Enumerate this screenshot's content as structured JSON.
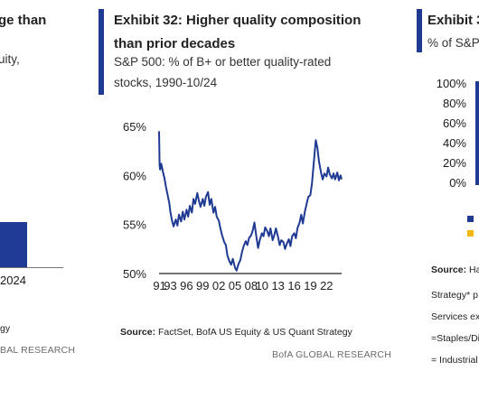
{
  "left_panel": {
    "title_fragment": "ge than",
    "subtitle_fragment": "uity,",
    "bar_axis_label": "2024",
    "source_fragment": "gy",
    "footer_fragment": "BAL RESEARCH",
    "bar_color": "#1f3a93"
  },
  "center_panel": {
    "title_line1": "Exhibit 32: Higher quality composition",
    "title_line2": "than prior decades",
    "subtitle_line1": "S&P 500: % of B+ or better quality-rated",
    "subtitle_line2": "stocks, 1990-10/24",
    "source_label": "Source:",
    "source_text": "FactSet, BofA US Equity & US Quant Strategy",
    "footer": "BofA GLOBAL RESEARCH",
    "accent_color": "#1f3a93"
  },
  "right_panel": {
    "title_fragment": "Exhibit 3",
    "subtitle_fragment": "% of S&P",
    "yticks": [
      "100%",
      "80%",
      "60%",
      "40%",
      "20%",
      "0%"
    ],
    "legend_colors": [
      "#1f3a93",
      "#f2b705"
    ],
    "source_label": "Source:",
    "source_fragment": "Ha",
    "notes": [
      "Strategy* p",
      "Services exc",
      "=Staples/Di",
      "= Industrial"
    ]
  },
  "chart_data": {
    "type": "line",
    "title": "Exhibit 32: Higher quality composition than prior decades",
    "subtitle": "S&P 500: % of B+ or better quality-rated stocks, 1990-10/24",
    "xlabel": "",
    "ylabel": "",
    "ylim": [
      50,
      65
    ],
    "xlim": [
      1990.9,
      2024.8
    ],
    "y_ticks": [
      "50%",
      "55%",
      "60%",
      "65%"
    ],
    "y_tick_values": [
      50,
      55,
      60,
      65
    ],
    "x_ticks": [
      "91",
      "93",
      "96",
      "99",
      "02",
      "05",
      "08",
      "10",
      "13",
      "16",
      "19",
      "22"
    ],
    "x_tick_values": [
      1991,
      1993,
      1996,
      1999,
      2002,
      2005,
      2008,
      2010,
      2013,
      2016,
      2019,
      2022
    ],
    "grid": false,
    "legend": "none",
    "line_color": "#1f3a93",
    "series": [
      {
        "x": [
          1990.9,
          1991.0,
          1991.1,
          1991.3,
          1991.6,
          1991.9,
          1992.2,
          1992.5,
          1992.8,
          1993.0,
          1993.3,
          1993.6,
          1994.0,
          1994.3,
          1994.6,
          1995.0,
          1995.3,
          1995.6,
          1996.0,
          1996.3,
          1996.6,
          1997.0,
          1997.3,
          1997.6,
          1998.0,
          1998.3,
          1998.6,
          1999.0,
          1999.3,
          1999.6,
          2000.0,
          2000.3,
          2000.6,
          2001.0,
          2001.3,
          2001.6,
          2002.0,
          2002.3,
          2002.6,
          2003.0,
          2003.3,
          2003.6,
          2004.0,
          2004.3,
          2004.6,
          2005.0,
          2005.3,
          2005.6,
          2006.0,
          2006.3,
          2006.6,
          2007.0,
          2007.3,
          2007.6,
          2008.0,
          2008.3,
          2008.6,
          2009.0,
          2009.3,
          2009.6,
          2010.0,
          2010.3,
          2010.6,
          2011.0,
          2011.3,
          2011.6,
          2012.0,
          2012.3,
          2012.6,
          2013.0,
          2013.3,
          2013.6,
          2014.0,
          2014.3,
          2014.6,
          2015.0,
          2015.3,
          2015.6,
          2016.0,
          2016.3,
          2016.6,
          2017.0,
          2017.3,
          2017.6,
          2018.0,
          2018.3,
          2018.6,
          2019.0,
          2019.3,
          2019.6,
          2020.0,
          2020.3,
          2020.6,
          2021.0,
          2021.3,
          2021.6,
          2022.0,
          2022.3,
          2022.6,
          2023.0,
          2023.3,
          2023.6,
          2024.0,
          2024.3,
          2024.6,
          2024.8
        ],
        "y": [
          64.5,
          61.0,
          60.6,
          61.2,
          60.4,
          59.7,
          58.8,
          58.0,
          57.2,
          56.3,
          55.4,
          54.8,
          55.5,
          54.9,
          56.0,
          55.3,
          56.3,
          55.5,
          56.5,
          55.8,
          56.9,
          56.2,
          57.6,
          57.1,
          58.2,
          57.4,
          56.8,
          57.6,
          56.9,
          57.8,
          58.3,
          57.0,
          57.6,
          56.2,
          56.8,
          55.8,
          55.4,
          54.6,
          53.9,
          53.2,
          52.9,
          51.8,
          51.2,
          50.9,
          51.5,
          50.6,
          50.3,
          50.9,
          51.4,
          52.2,
          52.8,
          53.3,
          52.9,
          53.6,
          53.9,
          54.4,
          55.2,
          53.6,
          52.6,
          53.4,
          54.1,
          53.8,
          54.7,
          54.3,
          53.8,
          54.6,
          53.4,
          53.9,
          54.6,
          53.7,
          52.9,
          53.4,
          53.2,
          52.5,
          53.0,
          53.5,
          52.8,
          53.8,
          54.1,
          53.6,
          54.6,
          55.2,
          56.0,
          55.1,
          56.4,
          57.1,
          57.8,
          58.0,
          59.2,
          61.1,
          63.6,
          62.8,
          61.4,
          60.2,
          59.6,
          60.2,
          59.9,
          60.8,
          60.1,
          59.7,
          60.2,
          59.6,
          60.3,
          59.5,
          60.0,
          59.6
        ]
      }
    ]
  }
}
